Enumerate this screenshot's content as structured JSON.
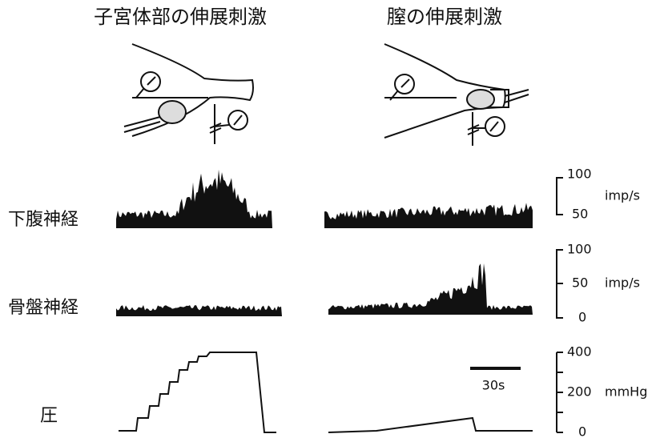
{
  "titles": [
    "子宮体部の伸展刺激",
    "膣の伸展刺激"
  ],
  "rows": [
    {
      "label": "下腹神経",
      "scale": {
        "labels": [
          "100",
          "50"
        ],
        "unit": "imp/s"
      }
    },
    {
      "label": "骨盤神経",
      "scale": {
        "labels": [
          "100",
          "50",
          "0"
        ],
        "unit": "imp/s"
      }
    },
    {
      "label": "圧",
      "scale": {
        "labels": [
          "400",
          "200",
          "0"
        ],
        "unit": "mmHg"
      }
    }
  ],
  "time_bar": "30s"
}
